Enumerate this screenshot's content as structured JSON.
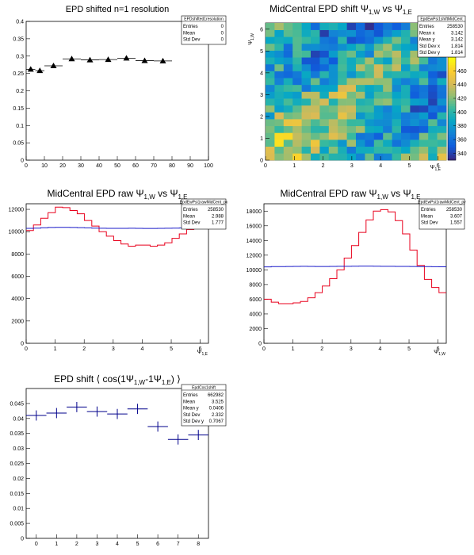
{
  "charts": [
    {
      "id": "p1",
      "type": "scatter",
      "title": "EPD shifted n=1 resolution",
      "stats": {
        "name": "EPDshifted1resolution",
        "rows": [
          [
            "Entries",
            "0"
          ],
          [
            "Mean",
            "0"
          ],
          [
            "Std Dev",
            "0"
          ]
        ]
      },
      "xlim": [
        0,
        100
      ],
      "ylim": [
        0,
        0.4
      ],
      "xticks": [
        "0",
        "10",
        "20",
        "30",
        "40",
        "50",
        "60",
        "70",
        "80",
        "90",
        "100"
      ],
      "yticks": [
        "0",
        "0.05",
        "0.1",
        "0.15",
        "0.2",
        "0.25",
        "0.3",
        "0.35",
        "0.4"
      ],
      "xlabel": "",
      "ylabel": "",
      "points": [
        {
          "x": 2.5,
          "y": 0.262,
          "xerr": 2.5,
          "yerr": 0.006
        },
        {
          "x": 7.5,
          "y": 0.258,
          "xerr": 2.5,
          "yerr": 0.006
        },
        {
          "x": 15,
          "y": 0.272,
          "xerr": 5,
          "yerr": 0.005
        },
        {
          "x": 25,
          "y": 0.292,
          "xerr": 5,
          "yerr": 0.004
        },
        {
          "x": 35,
          "y": 0.289,
          "xerr": 5,
          "yerr": 0.004
        },
        {
          "x": 45,
          "y": 0.29,
          "xerr": 5,
          "yerr": 0.004
        },
        {
          "x": 55,
          "y": 0.294,
          "xerr": 5,
          "yerr": 0.004
        },
        {
          "x": 65,
          "y": 0.287,
          "xerr": 5,
          "yerr": 0.005
        },
        {
          "x": 75,
          "y": 0.286,
          "xerr": 5,
          "yerr": 0.005
        }
      ]
    },
    {
      "id": "p2",
      "type": "heatmap",
      "title_main": "MidCentral EPD shift Ψ",
      "title_sub1": "1,W",
      "title_mid": " vs Ψ",
      "title_sub2": "1,E",
      "stats": {
        "name": "EpdEwPsi1shiftMidCent",
        "rows": [
          [
            "Entries",
            "258530"
          ],
          [
            "Mean x",
            "3.142"
          ],
          [
            "Mean y",
            "3.142"
          ],
          [
            "Std Dev x",
            "1.814"
          ],
          [
            "Std Dev y",
            "1.814"
          ]
        ]
      },
      "xlim": [
        0,
        6.283
      ],
      "ylim": [
        0,
        6.283
      ],
      "xticks": [
        "0",
        "1",
        "2",
        "3",
        "4",
        "5",
        "6"
      ],
      "yticks": [
        "0",
        "1",
        "2",
        "3",
        "4",
        "5",
        "6"
      ],
      "xlabel_main": "Ψ",
      "xlabel_sub": "1,E",
      "ylabel_main": "Ψ",
      "ylabel_sub": "1,W",
      "zlim": [
        330,
        480
      ],
      "zticks": [
        "340",
        "360",
        "380",
        "400",
        "420",
        "440",
        "460"
      ],
      "nbins": 20
    },
    {
      "id": "p3",
      "type": "line",
      "title_main": "MidCentral EPD raw Ψ",
      "title_sub1": "1,W",
      "title_mid": " vs Ψ",
      "title_sub2": "1,E",
      "stats": {
        "name": "EpdEwPsi1rawMidCent_px",
        "rows": [
          [
            "Entries",
            "258530"
          ],
          [
            "Mean",
            "2.988"
          ],
          [
            "Std Dev",
            "1.777"
          ]
        ]
      },
      "xlim": [
        0,
        6.283
      ],
      "ylim": [
        0,
        12500
      ],
      "xticks": [
        "0",
        "1",
        "2",
        "3",
        "4",
        "5",
        "6"
      ],
      "yticks": [
        "0",
        "2000",
        "4000",
        "6000",
        "8000",
        "10000",
        "12000"
      ],
      "xlabel_main": "Ψ",
      "xlabel_sub": "1,E",
      "nbins": 25,
      "series": [
        {
          "color": "#e8001c",
          "values": [
            10100,
            10600,
            11200,
            11700,
            12200,
            12150,
            11900,
            11600,
            11000,
            10500,
            10000,
            9600,
            9200,
            8900,
            8700,
            8800,
            8800,
            8700,
            8800,
            9000,
            9400,
            9800,
            10200,
            10500,
            10400
          ]
        },
        {
          "color": "#1919c8",
          "values": [
            10300,
            10320,
            10350,
            10380,
            10390,
            10390,
            10380,
            10360,
            10340,
            10320,
            10310,
            10300,
            10300,
            10300,
            10310,
            10300,
            10290,
            10290,
            10300,
            10310,
            10320,
            10330,
            10330,
            10330,
            10320
          ]
        }
      ]
    },
    {
      "id": "p4",
      "type": "line",
      "title_main": "MidCentral EPD raw Ψ",
      "title_sub1": "1,W",
      "title_mid": " vs Ψ",
      "title_sub2": "1,E",
      "stats": {
        "name": "EpdEwPsi1rawMidCent_py",
        "rows": [
          [
            "Entries",
            "258530"
          ],
          [
            "Mean",
            "3.607"
          ],
          [
            "Std Dev",
            "1.557"
          ]
        ]
      },
      "xlim": [
        0,
        6.283
      ],
      "ylim": [
        0,
        19000
      ],
      "xticks": [
        "0",
        "1",
        "2",
        "3",
        "4",
        "5",
        "6"
      ],
      "yticks": [
        "0",
        "2000",
        "4000",
        "6000",
        "8000",
        "10000",
        "12000",
        "14000",
        "16000",
        "18000"
      ],
      "xlabel_main": "Ψ",
      "xlabel_sub": "1,W",
      "nbins": 25,
      "series": [
        {
          "color": "#e8001c",
          "values": [
            6000,
            5600,
            5400,
            5400,
            5500,
            5700,
            6200,
            6900,
            7800,
            8800,
            10000,
            11600,
            13300,
            15100,
            16800,
            18000,
            18200,
            17900,
            16700,
            14900,
            12700,
            10600,
            8700,
            7600,
            6900
          ]
        },
        {
          "color": "#1919c8",
          "values": [
            10400,
            10450,
            10450,
            10460,
            10470,
            10480,
            10470,
            10460,
            10460,
            10470,
            10480,
            10490,
            10500,
            10510,
            10510,
            10500,
            10490,
            10480,
            10470,
            10470,
            10460,
            10450,
            10440,
            10430,
            10420
          ]
        }
      ]
    },
    {
      "id": "p5",
      "type": "scatter",
      "title_pre": "EPD shift ⟨ cos(1Ψ",
      "title_sub1": "1,W",
      "title_mid": "-1Ψ",
      "title_sub2": "1,E",
      "title_post": ") ⟩",
      "stats": {
        "name": "EpdCos1shift",
        "rows": [
          [
            "Entries",
            "662982"
          ],
          [
            "Mean",
            "3.525"
          ],
          [
            "Mean y",
            "0.0406"
          ],
          [
            "Std Dev",
            "2.332"
          ],
          [
            "Std Dev y",
            "0.7067"
          ]
        ]
      },
      "xlim": [
        -0.5,
        8.5
      ],
      "ylim": [
        0,
        0.05
      ],
      "xticks": [
        "0",
        "1",
        "2",
        "3",
        "4",
        "5",
        "6",
        "7",
        "8"
      ],
      "yticks": [
        "0",
        "0.005",
        "0.01",
        "0.015",
        "0.02",
        "0.025",
        "0.03",
        "0.035",
        "0.04",
        "0.045"
      ],
      "points": [
        {
          "x": 0,
          "y": 0.041,
          "xerr": 0.5,
          "yerr": 0.0017
        },
        {
          "x": 1,
          "y": 0.0418,
          "xerr": 0.5,
          "yerr": 0.0017
        },
        {
          "x": 2,
          "y": 0.0438,
          "xerr": 0.5,
          "yerr": 0.0017
        },
        {
          "x": 3,
          "y": 0.0423,
          "xerr": 0.5,
          "yerr": 0.0017
        },
        {
          "x": 4,
          "y": 0.0415,
          "xerr": 0.5,
          "yerr": 0.0017
        },
        {
          "x": 5,
          "y": 0.0432,
          "xerr": 0.5,
          "yerr": 0.0017
        },
        {
          "x": 6,
          "y": 0.0373,
          "xerr": 0.5,
          "yerr": 0.0017
        },
        {
          "x": 7,
          "y": 0.033,
          "xerr": 0.5,
          "yerr": 0.0017
        },
        {
          "x": 8,
          "y": 0.0345,
          "xerr": 0.5,
          "yerr": 0.0017
        }
      ]
    }
  ]
}
